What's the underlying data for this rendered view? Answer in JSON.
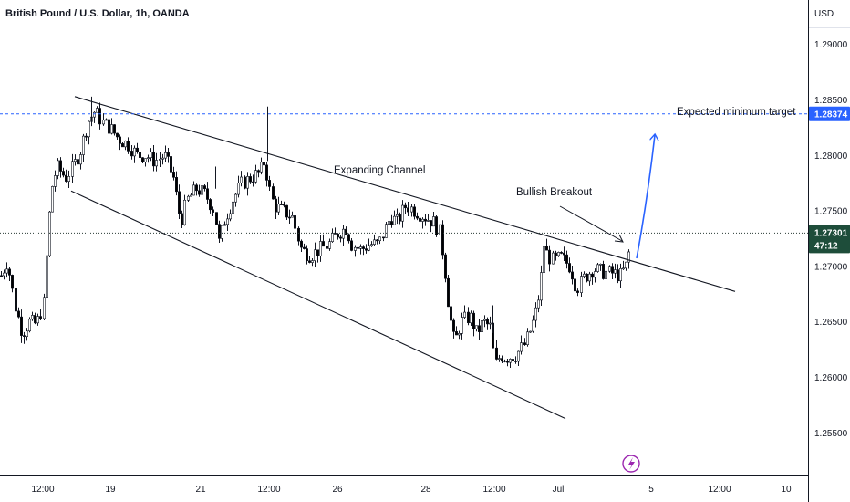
{
  "header": {
    "title": "British Pound / U.S. Dollar, 1h, OANDA",
    "currency": "USD"
  },
  "chart_data": {
    "type": "candlestick",
    "symbol": "GBPUSD",
    "timeframe": "1h",
    "ylim": [
      1.25125,
      1.294
    ],
    "y_ticks": [
      1.255,
      1.26,
      1.265,
      1.27,
      1.275,
      1.28,
      1.285,
      1.29
    ],
    "y_tick_labels": [
      "1.25500",
      "1.26000",
      "1.26500",
      "1.27000",
      "1.27500",
      "1.28000",
      "1.28500",
      "1.29000"
    ],
    "x_tick_labels": [
      "12:00",
      "19",
      "21",
      "12:00",
      "26",
      "28",
      "12:00",
      "Jul",
      "5",
      "12:00",
      "10"
    ],
    "current_price": 1.27301,
    "current_price_label": "1.27301",
    "countdown": "47:12",
    "target_price": 1.28374,
    "target_label": "1.28374",
    "annotations": {
      "channel": "Expanding Channel",
      "breakout": "Bullish Breakout",
      "target": "Expected minimum target"
    },
    "price_path": [
      [
        0,
        1.269
      ],
      [
        8,
        1.2705
      ],
      [
        16,
        1.2665
      ],
      [
        24,
        1.264
      ],
      [
        32,
        1.265
      ],
      [
        40,
        1.2648
      ],
      [
        48,
        1.2668
      ],
      [
        52,
        1.273
      ],
      [
        56,
        1.277
      ],
      [
        62,
        1.279
      ],
      [
        72,
        1.278
      ],
      [
        80,
        1.279
      ],
      [
        88,
        1.2805
      ],
      [
        96,
        1.283
      ],
      [
        104,
        1.284
      ],
      [
        112,
        1.283
      ],
      [
        120,
        1.2825
      ],
      [
        130,
        1.2815
      ],
      [
        140,
        1.281
      ],
      [
        150,
        1.28
      ],
      [
        160,
        1.28
      ],
      [
        170,
        1.2795
      ],
      [
        180,
        1.28
      ],
      [
        190,
        1.278
      ],
      [
        198,
        1.274
      ],
      [
        205,
        1.276
      ],
      [
        215,
        1.277
      ],
      [
        225,
        1.2765
      ],
      [
        235,
        1.275
      ],
      [
        240,
        1.272
      ],
      [
        245,
        1.274
      ],
      [
        255,
        1.276
      ],
      [
        265,
        1.2775
      ],
      [
        275,
        1.278
      ],
      [
        285,
        1.2785
      ],
      [
        290,
        1.2795
      ],
      [
        295,
        1.277
      ],
      [
        300,
        1.2755
      ],
      [
        310,
        1.275
      ],
      [
        320,
        1.2745
      ],
      [
        325,
        1.273
      ],
      [
        330,
        1.2715
      ],
      [
        340,
        1.271
      ],
      [
        350,
        1.2715
      ],
      [
        360,
        1.272
      ],
      [
        370,
        1.273
      ],
      [
        380,
        1.2735
      ],
      [
        385,
        1.272
      ],
      [
        395,
        1.2715
      ],
      [
        405,
        1.272
      ],
      [
        415,
        1.272
      ],
      [
        420,
        1.273
      ],
      [
        428,
        1.2745
      ],
      [
        435,
        1.274
      ],
      [
        445,
        1.2755
      ],
      [
        455,
        1.275
      ],
      [
        465,
        1.2745
      ],
      [
        475,
        1.274
      ],
      [
        482,
        1.273
      ],
      [
        487,
        1.27
      ],
      [
        492,
        1.266
      ],
      [
        498,
        1.263
      ],
      [
        505,
        1.265
      ],
      [
        515,
        1.2655
      ],
      [
        522,
        1.264
      ],
      [
        530,
        1.265
      ],
      [
        538,
        1.2645
      ],
      [
        542,
        1.261
      ],
      [
        548,
        1.262
      ],
      [
        555,
        1.2618
      ],
      [
        565,
        1.262
      ],
      [
        575,
        1.263
      ],
      [
        580,
        1.264
      ],
      [
        586,
        1.2655
      ],
      [
        592,
        1.268
      ],
      [
        596,
        1.272
      ],
      [
        600,
        1.271
      ],
      [
        606,
        1.2705
      ],
      [
        615,
        1.2708
      ],
      [
        625,
        1.27
      ],
      [
        632,
        1.268
      ],
      [
        640,
        1.269
      ],
      [
        650,
        1.2698
      ],
      [
        660,
        1.2695
      ],
      [
        670,
        1.2694
      ],
      [
        680,
        1.2692
      ],
      [
        686,
        1.27
      ],
      [
        690,
        1.2715
      ],
      [
        694,
        1.273
      ]
    ]
  },
  "axis_badges": {
    "target_color": "#2962ff",
    "current_color": "#1e4d3a"
  },
  "colors": {
    "candle_up": "#ffffff",
    "candle_down": "#000000",
    "wick": "#131722",
    "trendline": "#131722",
    "target_line": "#2962ff",
    "projection_arrow": "#2962ff",
    "price_line": "#2a3b36",
    "logo": "#9c27b0"
  },
  "icons": {
    "logo": "lightning-icon"
  }
}
